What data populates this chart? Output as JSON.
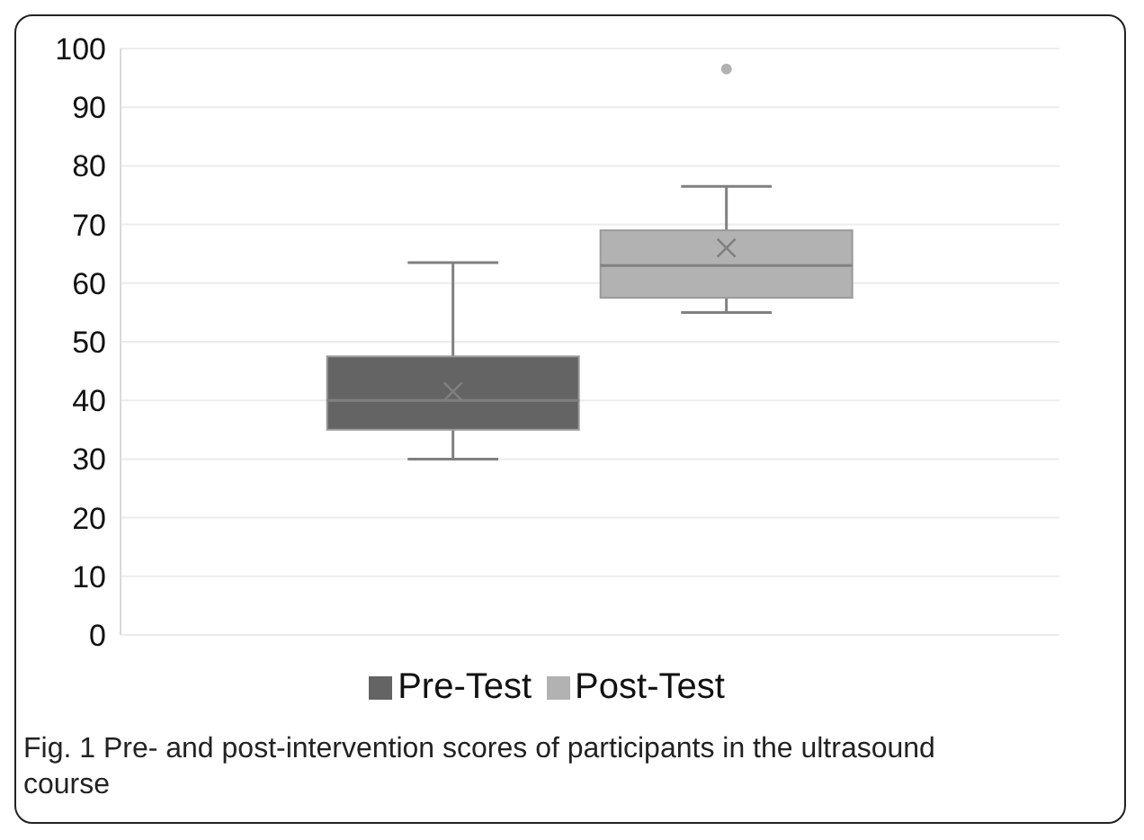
{
  "chart_data": {
    "type": "box",
    "categories": [
      null
    ],
    "series": [
      {
        "name": "Pre-Test",
        "color": "#646464",
        "boxes": [
          {
            "low": 30,
            "q1": 35,
            "median": 40,
            "q3": 47.5,
            "high": 63.5,
            "mean": 41.5
          }
        ]
      },
      {
        "name": "Post-Test",
        "color": "#b2b2b2",
        "boxes": [
          {
            "low": 55,
            "q1": 57.5,
            "median": 63,
            "q3": 69,
            "high": 76.5,
            "mean": 66,
            "outliers": [
              96.5
            ]
          }
        ]
      }
    ],
    "ylim": [
      0,
      100
    ],
    "yticks": [
      0,
      10,
      20,
      30,
      40,
      50,
      60,
      70,
      80,
      90,
      100
    ],
    "grid": "y",
    "legend": "bottom",
    "tick_labels": "y",
    "annotations": [
      "Fig. 1  Pre- and post-intervention scores of participants in the ultrasound course"
    ]
  }
}
